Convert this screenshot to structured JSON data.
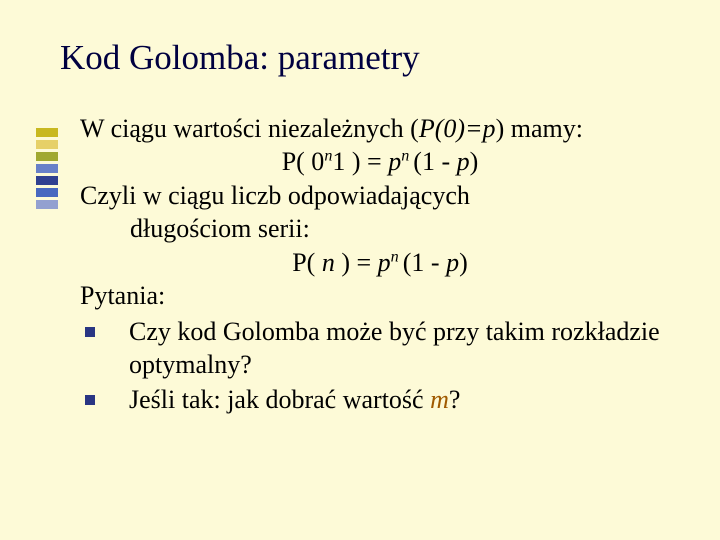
{
  "deco_colors": [
    "#c8b820",
    "#e6d068",
    "#a0a830",
    "#6880c8",
    "#304090",
    "#4868c0",
    "#93a0d0"
  ],
  "title": "Kod Golomba: parametry",
  "line1_a": "W ciągu wartości niezależnych (",
  "line1_b": "P(0)=p",
  "line1_c": ") mamy:",
  "eq1_a": "P( 0",
  "eq1_b": "n",
  "eq1_c": "1 ) = ",
  "eq1_d": "p",
  "eq1_e": "n ",
  "eq1_f": "(1 - ",
  "eq1_g": "p",
  "eq1_h": ")",
  "line2": "Czyli w ciągu liczb odpowiadających",
  "line2b": "długościom serii:",
  "eq2_a": "P( ",
  "eq2_b": "n",
  "eq2_c": " ) = ",
  "eq2_d": "p",
  "eq2_e": "n ",
  "eq2_f": "(1 - ",
  "eq2_g": "p",
  "eq2_h": ")",
  "line3": "Pytania:",
  "bullet1": "Czy kod Golomba może być przy takim rozkładzie optymalny?",
  "bullet2a": "Jeśli tak: jak dobrać wartość ",
  "bullet2b": "m",
  "bullet2c": "?"
}
